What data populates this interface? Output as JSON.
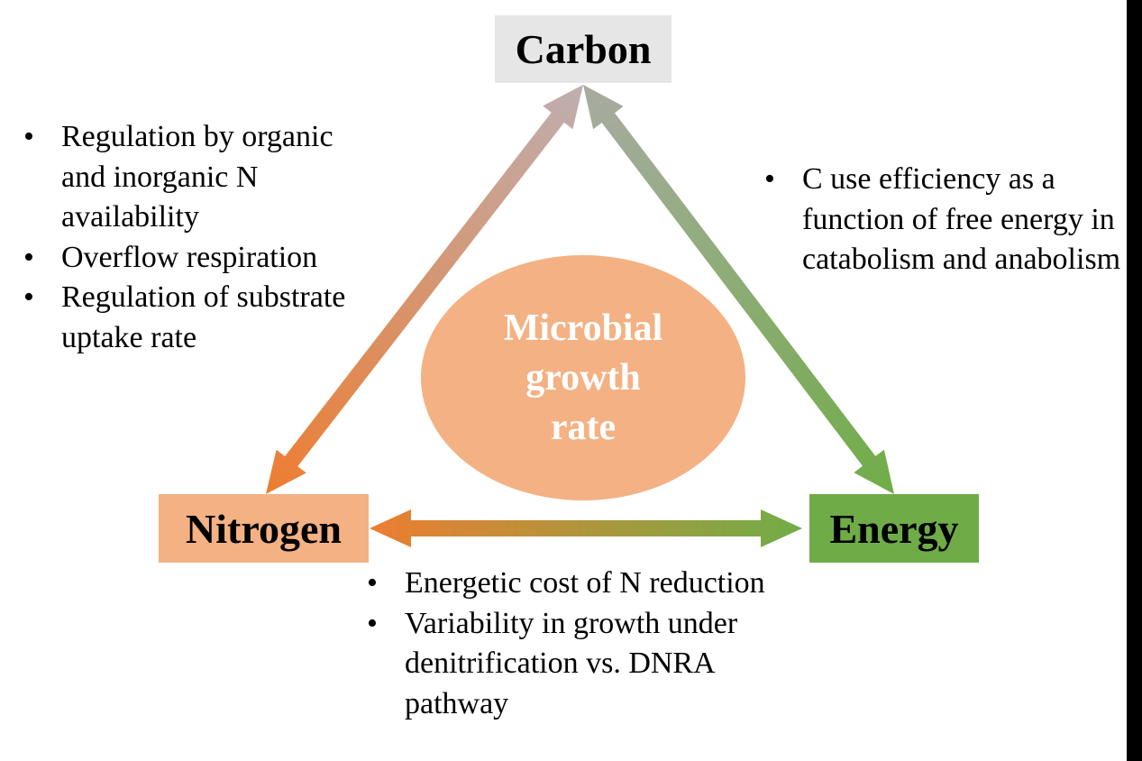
{
  "nodes": {
    "carbon": "Carbon",
    "nitrogen": "Nitrogen",
    "energy": "Energy",
    "center": "Microbial\ngrowth\nrate"
  },
  "notes": {
    "carbon_nitrogen": [
      "Regulation by organic and inorganic N availability",
      "Overflow respiration",
      "Regulation of substrate uptake rate"
    ],
    "carbon_energy": [
      "C use efficiency as a function of free energy in catabolism and anabolism"
    ],
    "nitrogen_energy": [
      "Energetic cost of N reduction",
      "Variability in growth under denitrification vs. DNRA pathway"
    ]
  },
  "colors": {
    "carbon_box": "#e6e6e6",
    "nitrogen_box": "#f4b183",
    "energy_box": "#6fac47",
    "center_ellipse": "#f4b183",
    "arrow_carbon_end": "#bfaeb0",
    "arrow_carbon_energy_end": "#a8aba2",
    "arrow_nitrogen_end": "#ed7d31",
    "arrow_energy_end": "#70ad47"
  }
}
